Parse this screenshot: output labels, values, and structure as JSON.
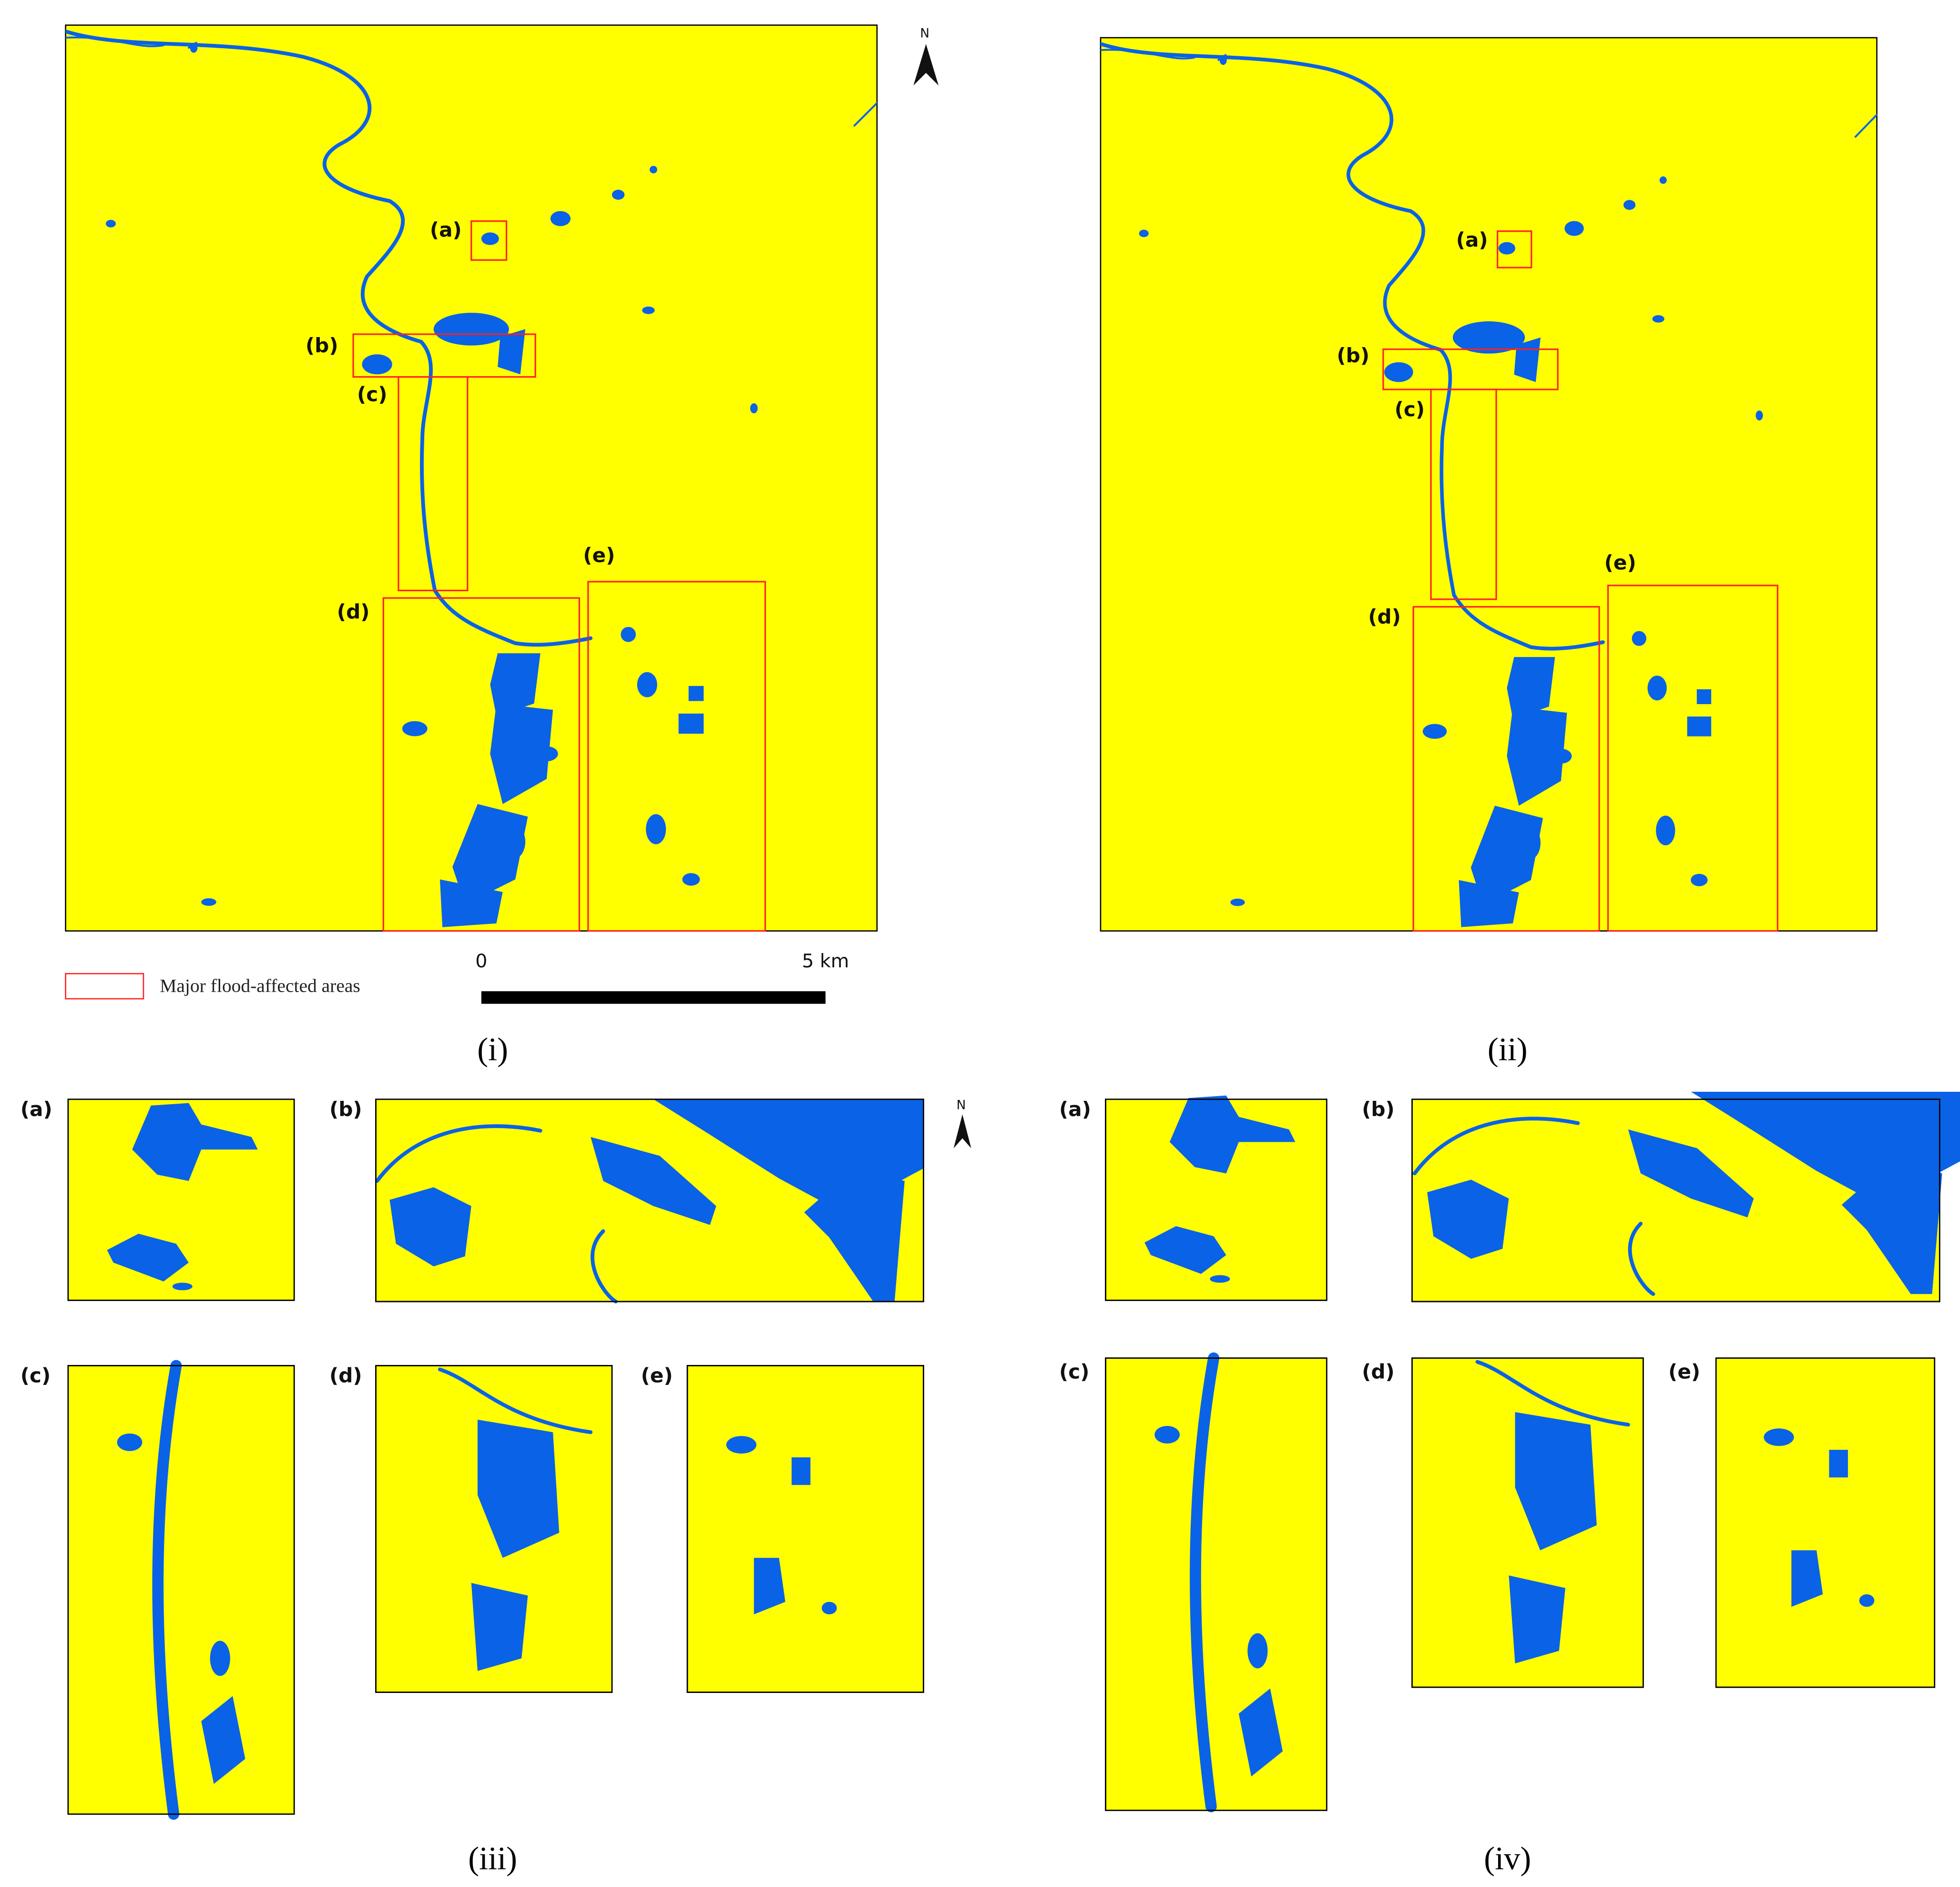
{
  "panel_i": {
    "caption": "(i)",
    "box_labels": [
      "(a)",
      "(b)",
      "(c)",
      "(d)",
      "(e)"
    ],
    "north": "N"
  },
  "panel_ii": {
    "caption": "(ii)",
    "box_labels": [
      "(a)",
      "(b)",
      "(c)",
      "(d)",
      "(e)"
    ]
  },
  "panel_iii": {
    "caption": "(iii)",
    "inset_labels": [
      "(a)",
      "(b)",
      "(c)",
      "(d)",
      "(e)"
    ],
    "north": "N"
  },
  "panel_iv": {
    "caption": "(iv)",
    "inset_labels": [
      "(a)",
      "(b)",
      "(c)",
      "(d)",
      "(e)"
    ]
  },
  "legend": {
    "label": "Major flood-affected areas"
  },
  "scale_bar": {
    "labels": [
      "0",
      "5 km"
    ]
  }
}
